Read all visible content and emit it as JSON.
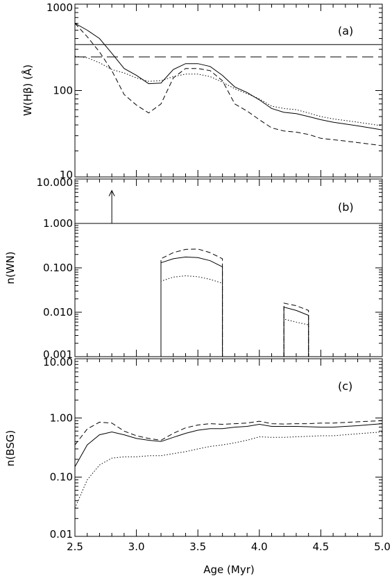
{
  "chart_data": [
    {
      "type": "line",
      "panel_label": "(a)",
      "ylabel": "W(Hβ) (Å)",
      "yscale": "log",
      "ylim": [
        10,
        1000
      ],
      "xlim": [
        2.5,
        5.0
      ],
      "yticks": [
        "10",
        "100",
        "1000"
      ],
      "series": [
        {
          "style": "solid",
          "x": [
            2.5,
            2.6,
            2.7,
            2.8,
            2.9,
            3.0,
            3.1,
            3.2,
            3.3,
            3.4,
            3.5,
            3.6,
            3.7,
            3.8,
            3.9,
            4.0,
            4.1,
            4.2,
            4.3,
            4.4,
            4.5,
            4.6,
            4.7,
            4.8,
            4.9,
            5.0
          ],
          "y": [
            600,
            500,
            400,
            270,
            180,
            150,
            120,
            122,
            175,
            205,
            205,
            190,
            150,
            110,
            95,
            78,
            62,
            56,
            54,
            50,
            46,
            43,
            41,
            39,
            37,
            35
          ]
        },
        {
          "style": "dashed",
          "x": [
            2.5,
            2.6,
            2.7,
            2.8,
            2.9,
            3.0,
            3.1,
            3.2,
            3.3,
            3.4,
            3.5,
            3.6,
            3.7,
            3.8,
            3.9,
            4.0,
            4.1,
            4.2,
            4.3,
            4.4,
            4.5,
            4.6,
            4.7,
            4.8,
            4.9,
            5.0
          ],
          "y": [
            600,
            420,
            280,
            170,
            90,
            68,
            55,
            70,
            140,
            180,
            180,
            170,
            130,
            70,
            58,
            46,
            37,
            34,
            33,
            31,
            28,
            27,
            26,
            25,
            24,
            23
          ]
        },
        {
          "style": "dotted",
          "x": [
            2.5,
            2.6,
            2.7,
            2.8,
            2.9,
            3.0,
            3.1,
            3.2,
            3.3,
            3.4,
            3.5,
            3.6,
            3.7,
            3.8,
            3.9,
            4.0,
            4.1,
            4.2,
            4.3,
            4.4,
            4.5,
            4.6,
            4.7,
            4.8,
            4.9,
            5.0
          ],
          "y": [
            250,
            240,
            210,
            175,
            160,
            140,
            128,
            130,
            145,
            155,
            155,
            145,
            125,
            105,
            92,
            80,
            66,
            62,
            60,
            55,
            50,
            47,
            45,
            43,
            41,
            39
          ]
        },
        {
          "style": "solid",
          "x": [
            2.5,
            5.0
          ],
          "y": [
            340,
            340
          ]
        },
        {
          "style": "longdash",
          "x": [
            2.5,
            5.0
          ],
          "y": [
            245,
            245
          ]
        }
      ]
    },
    {
      "type": "line",
      "panel_label": "(b)",
      "ylabel": "n(WN)",
      "yscale": "log",
      "ylim": [
        0.001,
        10
      ],
      "xlim": [
        2.5,
        5.0
      ],
      "yticks": [
        "0.001",
        "0.010",
        "0.100",
        "1.000",
        "10.000"
      ],
      "series": [
        {
          "style": "solid",
          "x": [
            3.2,
            3.2,
            3.3,
            3.4,
            3.5,
            3.6,
            3.7,
            3.7
          ],
          "y": [
            0.001,
            0.13,
            0.16,
            0.175,
            0.17,
            0.145,
            0.105,
            0.001
          ]
        },
        {
          "style": "dashed",
          "x": [
            3.2,
            3.2,
            3.3,
            3.4,
            3.5,
            3.6,
            3.7,
            3.7
          ],
          "y": [
            0.001,
            0.16,
            0.22,
            0.26,
            0.265,
            0.22,
            0.16,
            0.001
          ]
        },
        {
          "style": "dotted",
          "x": [
            3.2,
            3.2,
            3.3,
            3.4,
            3.5,
            3.6,
            3.7,
            3.7
          ],
          "y": [
            0.001,
            0.05,
            0.062,
            0.066,
            0.063,
            0.055,
            0.045,
            0.001
          ]
        },
        {
          "style": "solid",
          "x": [
            4.2,
            4.2,
            4.3,
            4.4,
            4.4
          ],
          "y": [
            0.001,
            0.013,
            0.011,
            0.0085,
            0.001
          ]
        },
        {
          "style": "dashed",
          "x": [
            4.2,
            4.2,
            4.3,
            4.4,
            4.4
          ],
          "y": [
            0.001,
            0.016,
            0.014,
            0.011,
            0.001
          ]
        },
        {
          "style": "dotted",
          "x": [
            4.2,
            4.2,
            4.3,
            4.4,
            4.4
          ],
          "y": [
            0.001,
            0.007,
            0.006,
            0.0052,
            0.001
          ]
        },
        {
          "style": "solid",
          "x": [
            2.5,
            5.0
          ],
          "y": [
            1.0,
            1.0
          ]
        }
      ],
      "arrow": {
        "x": 2.8,
        "y_from": 1.0,
        "y_to": 5.5
      }
    },
    {
      "type": "line",
      "panel_label": "(c)",
      "ylabel": "n(BSG)",
      "yscale": "log",
      "ylim": [
        0.01,
        10
      ],
      "xlim": [
        2.5,
        5.0
      ],
      "yticks": [
        "0.01",
        "0.10",
        "1.00",
        "10.00"
      ],
      "xticks": [
        "2.5",
        "3.0",
        "3.5",
        "4.0",
        "4.5",
        "5.0"
      ],
      "xlabel": "Age (Myr)",
      "series": [
        {
          "style": "solid",
          "x": [
            2.5,
            2.6,
            2.7,
            2.8,
            2.9,
            3.0,
            3.1,
            3.2,
            3.3,
            3.4,
            3.5,
            3.6,
            3.7,
            3.8,
            3.9,
            4.0,
            4.1,
            4.2,
            4.3,
            4.4,
            4.5,
            4.6,
            4.7,
            4.8,
            4.9,
            5.0
          ],
          "y": [
            0.15,
            0.35,
            0.52,
            0.58,
            0.52,
            0.45,
            0.42,
            0.4,
            0.47,
            0.55,
            0.62,
            0.66,
            0.66,
            0.7,
            0.72,
            0.78,
            0.72,
            0.72,
            0.72,
            0.71,
            0.7,
            0.7,
            0.72,
            0.74,
            0.77,
            0.8
          ]
        },
        {
          "style": "dashed",
          "x": [
            2.5,
            2.6,
            2.7,
            2.8,
            2.9,
            3.0,
            3.1,
            3.2,
            3.3,
            3.4,
            3.5,
            3.6,
            3.7,
            3.8,
            3.9,
            4.0,
            4.1,
            4.2,
            4.3,
            4.4,
            4.5,
            4.6,
            4.7,
            4.8,
            4.9,
            5.0
          ],
          "y": [
            0.35,
            0.65,
            0.85,
            0.82,
            0.6,
            0.5,
            0.45,
            0.42,
            0.55,
            0.68,
            0.76,
            0.8,
            0.78,
            0.8,
            0.82,
            0.88,
            0.8,
            0.79,
            0.8,
            0.8,
            0.82,
            0.82,
            0.84,
            0.86,
            0.88,
            0.9
          ]
        },
        {
          "style": "dotted",
          "x": [
            2.5,
            2.6,
            2.7,
            2.8,
            2.9,
            3.0,
            3.1,
            3.2,
            3.3,
            3.4,
            3.5,
            3.6,
            3.7,
            3.8,
            3.9,
            4.0,
            4.1,
            4.2,
            4.3,
            4.4,
            4.5,
            4.6,
            4.7,
            4.8,
            4.9,
            5.0
          ],
          "y": [
            0.03,
            0.09,
            0.16,
            0.21,
            0.22,
            0.22,
            0.23,
            0.23,
            0.25,
            0.27,
            0.3,
            0.33,
            0.35,
            0.38,
            0.42,
            0.48,
            0.47,
            0.47,
            0.48,
            0.49,
            0.5,
            0.5,
            0.52,
            0.54,
            0.56,
            0.58
          ]
        }
      ]
    }
  ]
}
